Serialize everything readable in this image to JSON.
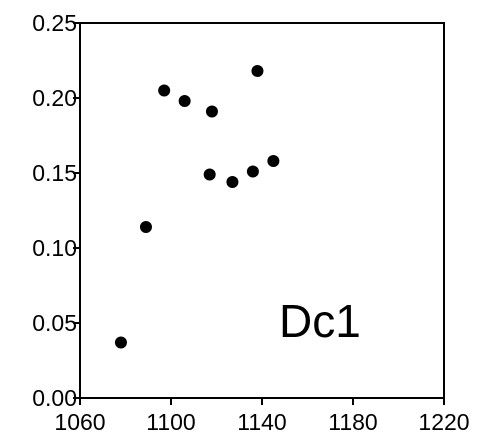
{
  "chart_data": {
    "type": "scatter",
    "annotation": "Dc1",
    "xlim": [
      1060,
      1220
    ],
    "ylim": [
      0.0,
      0.25
    ],
    "x_ticks": [
      1060,
      1100,
      1140,
      1180,
      1220
    ],
    "x_tick_labels": [
      "1060",
      "1100",
      "1140",
      "1180",
      "1220"
    ],
    "y_ticks": [
      0.0,
      0.05,
      0.1,
      0.15,
      0.2,
      0.25
    ],
    "y_tick_labels": [
      "0.00",
      "0.05",
      "0.10",
      "0.15",
      "0.20",
      "0.25"
    ],
    "grid": false,
    "marker_color": "#000000",
    "points": [
      {
        "x": 1078,
        "y": 0.037
      },
      {
        "x": 1089,
        "y": 0.114
      },
      {
        "x": 1097,
        "y": 0.205
      },
      {
        "x": 1106,
        "y": 0.198
      },
      {
        "x": 1117,
        "y": 0.149
      },
      {
        "x": 1118,
        "y": 0.191
      },
      {
        "x": 1127,
        "y": 0.144
      },
      {
        "x": 1136,
        "y": 0.151
      },
      {
        "x": 1138,
        "y": 0.218
      },
      {
        "x": 1145,
        "y": 0.158
      }
    ]
  }
}
